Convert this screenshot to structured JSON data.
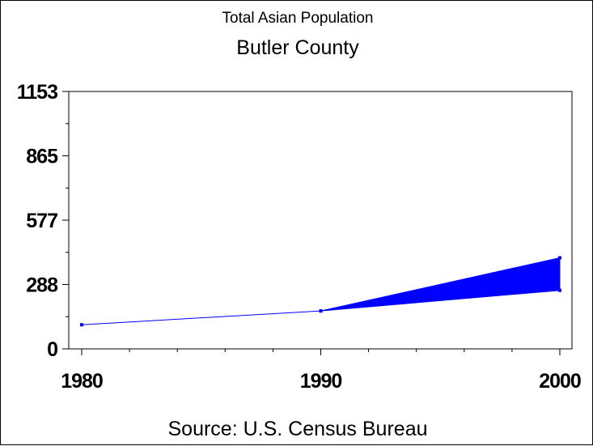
{
  "chart_data": {
    "type": "line",
    "title": "Total Asian Population",
    "subtitle": "Butler County",
    "footnote": "Source: U.S. Census Bureau",
    "xlabel": "",
    "ylabel": "",
    "x_ticks": [
      "1980",
      "1990",
      "2000"
    ],
    "y_ticks": [
      "0",
      "288",
      "577",
      "865",
      "1153"
    ],
    "xlim": [
      1980,
      2000
    ],
    "ylim": [
      0,
      1153
    ],
    "grid": false,
    "series": [
      {
        "x": [
          1980,
          1990
        ],
        "values": [
          108,
          170
        ],
        "color": "#0000ff"
      }
    ],
    "band": {
      "x": [
        1990,
        2000
      ],
      "lower": [
        170,
        262
      ],
      "upper": [
        170,
        408
      ],
      "color": "#0000ff"
    }
  }
}
